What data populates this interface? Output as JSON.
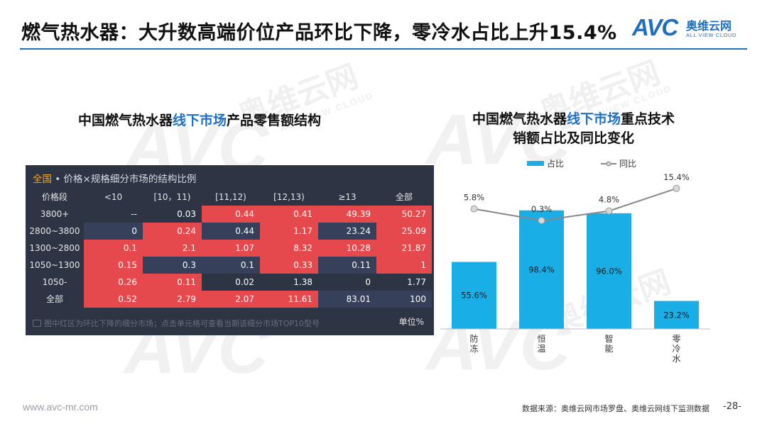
{
  "header": {
    "title": "燃气热水器：大升数高端价位产品环比下降，零冷水占比上升15.4%",
    "logo_mark": "AVC",
    "logo_cn": "奥维云网",
    "logo_en": "ALL VIEW CLOUD",
    "accent_color": "#1f6fc4"
  },
  "watermark": {
    "mark": "AVC",
    "cn": "奥维云网",
    "en": "ALL VIEW CLOUD"
  },
  "left_section": {
    "title_pre": "中国燃气热水器",
    "title_hl": "线下市场",
    "title_post": "产品零售额结构"
  },
  "right_section": {
    "title_line1_pre": "中国燃气热水器",
    "title_line1_hl": "线下市场",
    "title_line1_post": "重点技术",
    "title_line2": "销额占比及同比变化"
  },
  "table": {
    "title_accent": "全国",
    "title_rest": " • 价格×规格细分市场的结构比例",
    "columns": [
      "价格段",
      "<10",
      "[10，11)",
      "[11,12)",
      "[12,13)",
      "≥13",
      "全部"
    ],
    "rows": [
      {
        "label": "3800+",
        "cells": [
          "--",
          "0.03",
          "0.44",
          "0.41",
          "49.39",
          "50.27"
        ],
        "red": [
          false,
          false,
          true,
          true,
          true,
          true
        ]
      },
      {
        "label": "2800~3800",
        "cells": [
          "0",
          "0.24",
          "0.44",
          "1.17",
          "23.24",
          "25.09"
        ],
        "red": [
          false,
          true,
          false,
          true,
          false,
          true
        ]
      },
      {
        "label": "1300~2800",
        "cells": [
          "0.1",
          "2.1",
          "1.07",
          "8.32",
          "10.28",
          "21.87"
        ],
        "red": [
          true,
          true,
          true,
          true,
          true,
          true
        ]
      },
      {
        "label": "1050~1300",
        "cells": [
          "0.15",
          "0.3",
          "0.1",
          "0.33",
          "0.11",
          "1"
        ],
        "red": [
          true,
          false,
          false,
          true,
          false,
          true
        ]
      },
      {
        "label": "1050-",
        "cells": [
          "0.26",
          "0.11",
          "0.02",
          "1.38",
          "0",
          "1.77"
        ],
        "red": [
          true,
          true,
          false,
          false,
          false,
          false
        ]
      },
      {
        "label": "全部",
        "cells": [
          "0.52",
          "2.79",
          "2.07",
          "11.61",
          "83.01",
          "100"
        ],
        "red": [
          true,
          true,
          true,
          true,
          false,
          false
        ]
      }
    ],
    "note": "图中红区为环比下降的细分市场；点击单元格可查看当期该细分市场TOP10型号",
    "unit": "单位%",
    "red_color": "#e5484d",
    "dark_color": "#2d3444"
  },
  "chart_data": {
    "type": "bar",
    "categories": [
      "防冻",
      "恒温",
      "智能",
      "零冷水"
    ],
    "series": [
      {
        "name": "占比",
        "type": "bar",
        "values": [
          55.6,
          98.4,
          96.0,
          23.2
        ],
        "labels": [
          "55.6%",
          "98.4%",
          "96.0%",
          "23.2%"
        ],
        "color": "#1aaee6"
      },
      {
        "name": "同比",
        "type": "line",
        "values": [
          5.8,
          0.3,
          4.8,
          15.4
        ],
        "labels": [
          "5.8%",
          "0.3%",
          "4.8%",
          "15.4%"
        ],
        "color": "#888888"
      }
    ],
    "legend_position": "top",
    "grid": false
  },
  "footer": {
    "url": "www.avc-mr.com",
    "source": "数据来源：奥维云网市场罗盘、奥维云网线下监测数据",
    "page": "-28-"
  }
}
